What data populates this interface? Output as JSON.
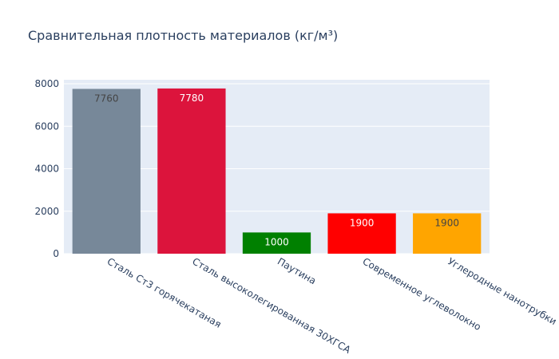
{
  "chart_data": {
    "type": "bar",
    "title": "Сравнительная плотность материалов (кг/м³)",
    "categories": [
      "Сталь Ст3 горячекатаная",
      "Сталь высоколегированная 30ХГСА",
      "Паутина",
      "Современное углеволокно",
      "Углеродные нанотрубки"
    ],
    "values": [
      7760,
      7780,
      1000,
      1900,
      1900
    ],
    "colors": [
      "#778899",
      "#dc143c",
      "#008000",
      "#ff0000",
      "#ffa500"
    ],
    "ylim": [
      0,
      8189.5
    ],
    "yticks": [
      0,
      2000,
      4000,
      6000,
      8000
    ],
    "grid": true
  }
}
